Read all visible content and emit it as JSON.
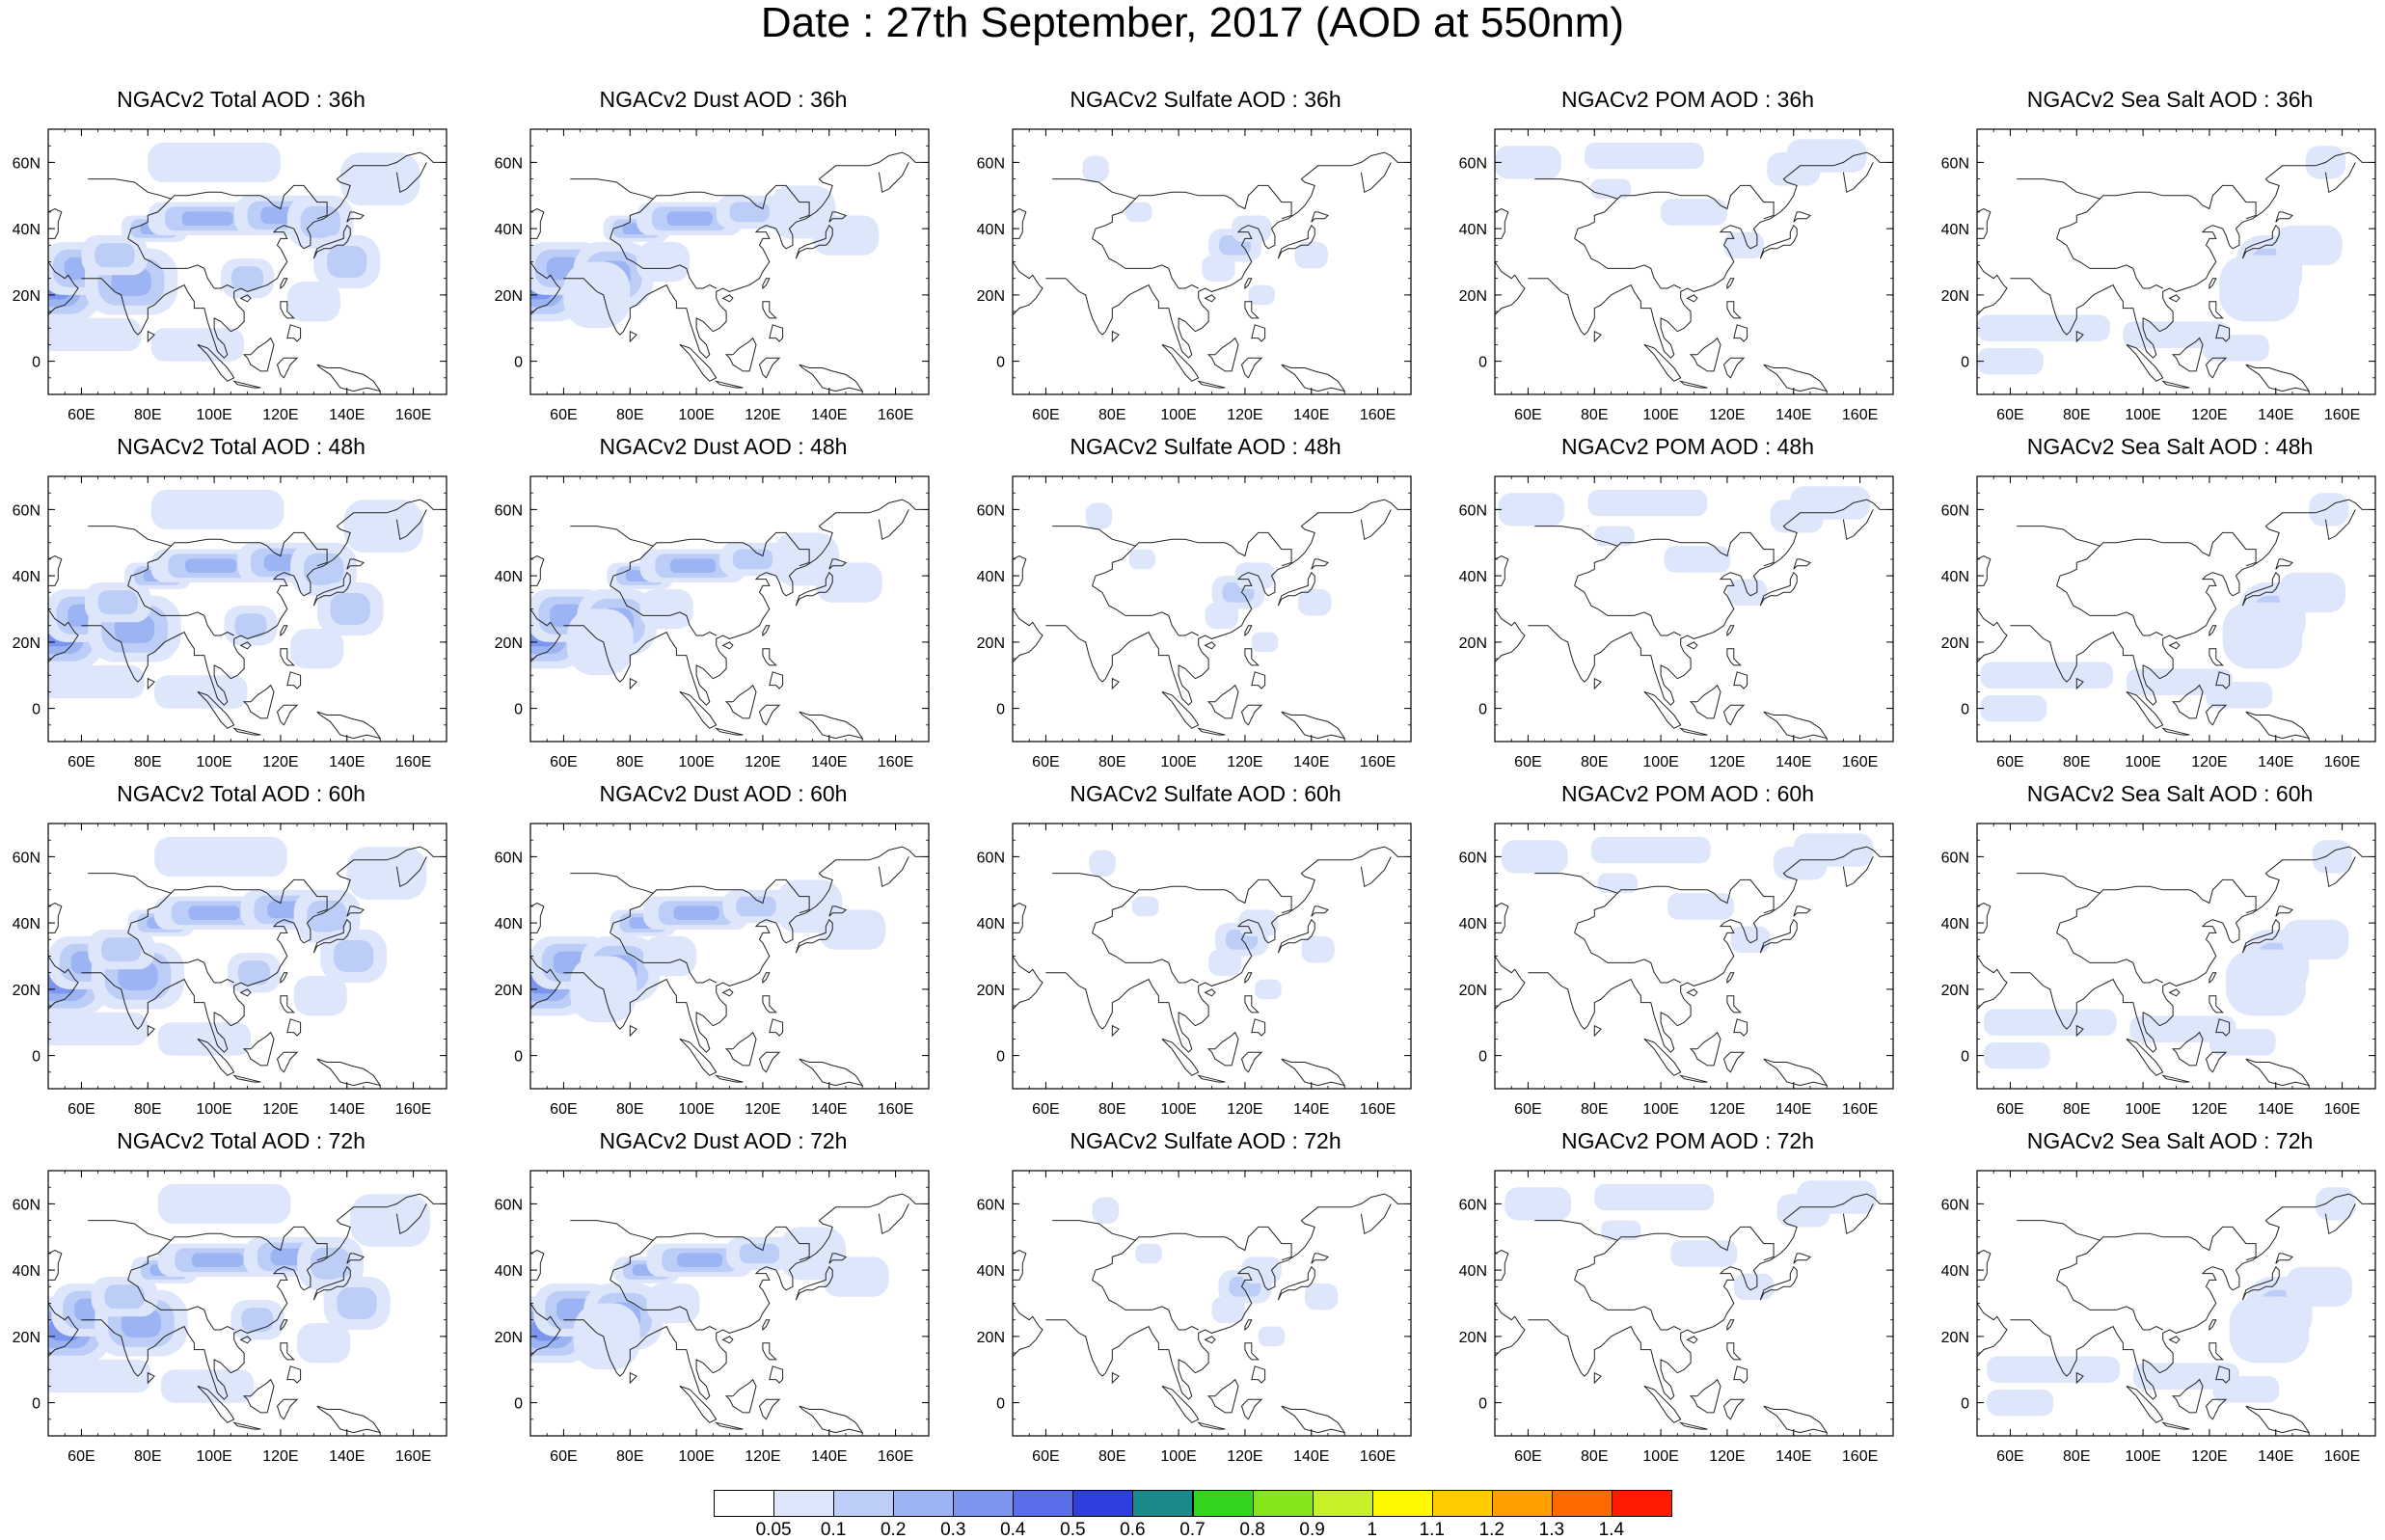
{
  "title": "Date : 27th September, 2017 (AOD at 550nm)",
  "map_axes": {
    "lon_ticks": [
      "60E",
      "80E",
      "100E",
      "120E",
      "140E",
      "160E"
    ],
    "lat_ticks": [
      "60N",
      "40N",
      "20N",
      "0"
    ],
    "lon_range": [
      50,
      170
    ],
    "lat_range": [
      -10,
      70
    ]
  },
  "panels": [
    {
      "title": "NGACv2 Total AOD : 36h",
      "species": "total",
      "hour": 36
    },
    {
      "title": "NGACv2 Dust AOD : 36h",
      "species": "dust",
      "hour": 36
    },
    {
      "title": "NGACv2 Sulfate AOD : 36h",
      "species": "sulfate",
      "hour": 36
    },
    {
      "title": "NGACv2 POM AOD : 36h",
      "species": "pom",
      "hour": 36
    },
    {
      "title": "NGACv2 Sea Salt AOD : 36h",
      "species": "seasalt",
      "hour": 36
    },
    {
      "title": "NGACv2 Total AOD : 48h",
      "species": "total",
      "hour": 48
    },
    {
      "title": "NGACv2 Dust AOD : 48h",
      "species": "dust",
      "hour": 48
    },
    {
      "title": "NGACv2 Sulfate AOD : 48h",
      "species": "sulfate",
      "hour": 48
    },
    {
      "title": "NGACv2 POM AOD : 48h",
      "species": "pom",
      "hour": 48
    },
    {
      "title": "NGACv2 Sea Salt AOD : 48h",
      "species": "seasalt",
      "hour": 48
    },
    {
      "title": "NGACv2 Total AOD : 60h",
      "species": "total",
      "hour": 60
    },
    {
      "title": "NGACv2 Dust AOD : 60h",
      "species": "dust",
      "hour": 60
    },
    {
      "title": "NGACv2 Sulfate AOD : 60h",
      "species": "sulfate",
      "hour": 60
    },
    {
      "title": "NGACv2 POM AOD : 60h",
      "species": "pom",
      "hour": 60
    },
    {
      "title": "NGACv2 Sea Salt AOD : 60h",
      "species": "seasalt",
      "hour": 60
    },
    {
      "title": "NGACv2 Total AOD : 72h",
      "species": "total",
      "hour": 72
    },
    {
      "title": "NGACv2 Dust AOD : 72h",
      "species": "dust",
      "hour": 72
    },
    {
      "title": "NGACv2 Sulfate AOD : 72h",
      "species": "sulfate",
      "hour": 72
    },
    {
      "title": "NGACv2 POM AOD : 72h",
      "species": "pom",
      "hour": 72
    },
    {
      "title": "NGACv2 Sea Salt  AOD : 72h",
      "species": "seasalt",
      "hour": 72
    }
  ],
  "colorbar": {
    "labels": [
      "0.05",
      "0.1",
      "0.2",
      "0.3",
      "0.4",
      "0.5",
      "0.6",
      "0.7",
      "0.8",
      "0.9",
      "1",
      "1.1",
      "1.2",
      "1.3",
      "1.4"
    ],
    "colors": [
      "#ffffff",
      "#dde6fb",
      "#bccef8",
      "#9cb4f4",
      "#7c96f0",
      "#5a6eea",
      "#2e3fe0",
      "#1a8a8a",
      "#32d41e",
      "#86e61a",
      "#c8f028",
      "#fff800",
      "#ffcc00",
      "#ffa000",
      "#ff6a00",
      "#ff1a00"
    ]
  }
}
